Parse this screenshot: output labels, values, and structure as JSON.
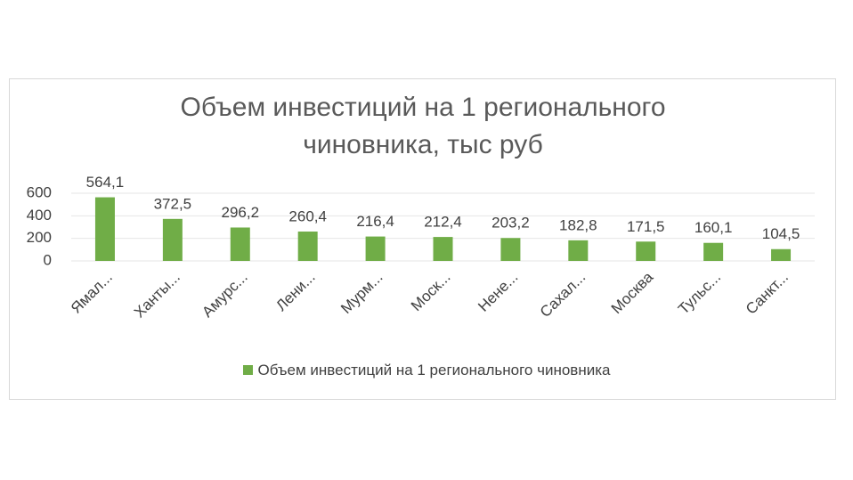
{
  "chart_data": {
    "type": "bar",
    "title": "Объем инвестиций на 1 регионального чиновника, тыс руб",
    "categories": [
      "Ямал...",
      "Ханты...",
      "Амурс...",
      "Лени...",
      "Мурм...",
      "Моск...",
      "Нене...",
      "Сахал...",
      "Москва",
      "Тульс...",
      "Санкт..."
    ],
    "series": [
      {
        "name": "Объем инвестиций на 1 регионального чиновника",
        "color": "#70ad47",
        "values": [
          564.1,
          372.5,
          296.2,
          260.4,
          216.4,
          212.4,
          203.2,
          182.8,
          171.5,
          160.1,
          104.5
        ],
        "value_labels": [
          "564,1",
          "372,5",
          "296,2",
          "260,4",
          "216,4",
          "212,4",
          "203,2",
          "182,8",
          "171,5",
          "160,1",
          "104,5"
        ]
      }
    ],
    "ylim": [
      0,
      600
    ],
    "yticks": [
      0,
      200,
      400,
      600
    ],
    "grid": true,
    "legend": "bottom"
  }
}
